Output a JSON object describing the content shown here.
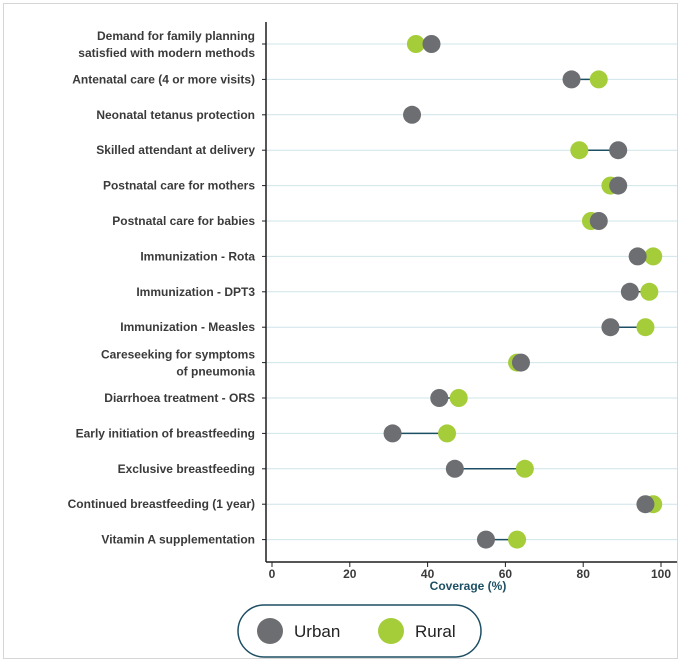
{
  "chart_data": {
    "type": "dumbbell",
    "xlabel": "Coverage (%)",
    "xlim": [
      0,
      100
    ],
    "xticks": [
      "0",
      "20",
      "40",
      "60",
      "80",
      "100"
    ],
    "grid": true,
    "legend_position": "bottom",
    "categories": [
      [
        "Demand for family planning",
        "satisfied with modern methods"
      ],
      [
        "Antenatal care (4 or more visits)"
      ],
      [
        "Neonatal tetanus protection"
      ],
      [
        "Skilled attendant at delivery"
      ],
      [
        "Postnatal care for mothers"
      ],
      [
        "Postnatal care for babies"
      ],
      [
        "Immunization - Rota"
      ],
      [
        "Immunization - DPT3"
      ],
      [
        "Immunization - Measles"
      ],
      [
        "Careseeking for symptoms",
        "of pneumonia"
      ],
      [
        "Diarrhoea treatment - ORS"
      ],
      [
        "Early initiation of breastfeeding"
      ],
      [
        "Exclusive breastfeeding"
      ],
      [
        "Continued breastfeeding (1 year)"
      ],
      [
        "Vitamin A supplementation"
      ]
    ],
    "series": [
      {
        "name": "Urban",
        "color": "#6d6e71",
        "values": [
          41,
          77,
          36,
          89,
          89,
          84,
          94,
          92,
          87,
          64,
          43,
          31,
          47,
          96,
          55
        ]
      },
      {
        "name": "Rural",
        "color": "#a5cd39",
        "values": [
          37,
          84,
          null,
          79,
          87,
          82,
          98,
          97,
          96,
          63,
          48,
          45,
          65,
          98,
          63
        ]
      }
    ],
    "connector_color": "#1d4f64",
    "grid_color": "#cfe4ea"
  }
}
